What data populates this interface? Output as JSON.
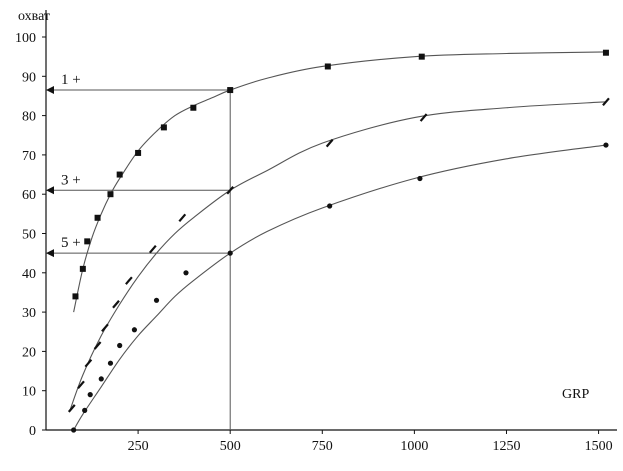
{
  "chart_data": {
    "type": "line",
    "ylabel": "охват",
    "xlabel": "GRP",
    "xlim": [
      0,
      1550
    ],
    "ylim": [
      0,
      100
    ],
    "x_ticks": [
      250,
      500,
      750,
      1000,
      1250,
      1500
    ],
    "x_tick_labels": [
      "250",
      "500",
      "750",
      "1000",
      "1250",
      "1500"
    ],
    "y_ticks": [
      0,
      10,
      20,
      30,
      40,
      50,
      60,
      70,
      80,
      90,
      100
    ],
    "y_tick_labels": [
      "0",
      "10",
      "20",
      "30",
      "40",
      "50",
      "60",
      "70",
      "80",
      "90",
      "100"
    ],
    "grid": false,
    "series": [
      {
        "name": "1 +",
        "marker": "square",
        "curve": [
          [
            75,
            30
          ],
          [
            100,
            41
          ],
          [
            125,
            49
          ],
          [
            150,
            55
          ],
          [
            175,
            60
          ],
          [
            200,
            64
          ],
          [
            250,
            71
          ],
          [
            300,
            76
          ],
          [
            350,
            80
          ],
          [
            400,
            82.5
          ],
          [
            450,
            84.5
          ],
          [
            500,
            86.5
          ],
          [
            600,
            89.5
          ],
          [
            750,
            92.5
          ],
          [
            1000,
            95
          ],
          [
            1250,
            95.8
          ],
          [
            1520,
            96.2
          ]
        ],
        "points": [
          [
            80,
            34
          ],
          [
            100,
            41
          ],
          [
            112,
            48
          ],
          [
            140,
            54
          ],
          [
            175,
            60
          ],
          [
            200,
            65
          ],
          [
            250,
            70.5
          ],
          [
            320,
            77
          ],
          [
            400,
            82
          ],
          [
            500,
            86.5
          ],
          [
            765,
            92.5
          ],
          [
            1020,
            95
          ],
          [
            1520,
            96
          ]
        ]
      },
      {
        "name": "3 +",
        "marker": "dash",
        "curve": [
          [
            65,
            5
          ],
          [
            100,
            14
          ],
          [
            150,
            24
          ],
          [
            200,
            32
          ],
          [
            250,
            39
          ],
          [
            300,
            45
          ],
          [
            350,
            50
          ],
          [
            400,
            54
          ],
          [
            500,
            61
          ],
          [
            600,
            66
          ],
          [
            750,
            73
          ],
          [
            1000,
            79.5
          ],
          [
            1250,
            82
          ],
          [
            1520,
            83.5
          ]
        ],
        "points": [
          [
            70,
            5.5
          ],
          [
            95,
            11.5
          ],
          [
            115,
            17
          ],
          [
            140,
            21.5
          ],
          [
            160,
            26
          ],
          [
            190,
            32
          ],
          [
            225,
            38
          ],
          [
            290,
            46
          ],
          [
            370,
            54
          ],
          [
            500,
            61
          ],
          [
            770,
            73
          ],
          [
            1025,
            79.5
          ],
          [
            1520,
            83.5
          ]
        ]
      },
      {
        "name": "5 +",
        "marker": "dot",
        "curve": [
          [
            75,
            0
          ],
          [
            100,
            4
          ],
          [
            150,
            11
          ],
          [
            200,
            18
          ],
          [
            250,
            24
          ],
          [
            300,
            29
          ],
          [
            350,
            34
          ],
          [
            400,
            38
          ],
          [
            500,
            45
          ],
          [
            600,
            50.5
          ],
          [
            750,
            56.5
          ],
          [
            1000,
            64
          ],
          [
            1250,
            69
          ],
          [
            1520,
            72.5
          ]
        ],
        "points": [
          [
            75,
            0
          ],
          [
            105,
            5
          ],
          [
            120,
            9
          ],
          [
            150,
            13
          ],
          [
            175,
            17
          ],
          [
            200,
            21.5
          ],
          [
            240,
            25.5
          ],
          [
            300,
            33
          ],
          [
            380,
            40
          ],
          [
            500,
            45
          ],
          [
            770,
            57
          ],
          [
            1015,
            64
          ],
          [
            1520,
            72.5
          ]
        ]
      }
    ],
    "annotations": [
      {
        "text": "1 +",
        "x": 500,
        "y": 86.5
      },
      {
        "text": "3 +",
        "x": 500,
        "y": 61
      },
      {
        "text": "5 +",
        "x": 500,
        "y": 45
      }
    ]
  }
}
